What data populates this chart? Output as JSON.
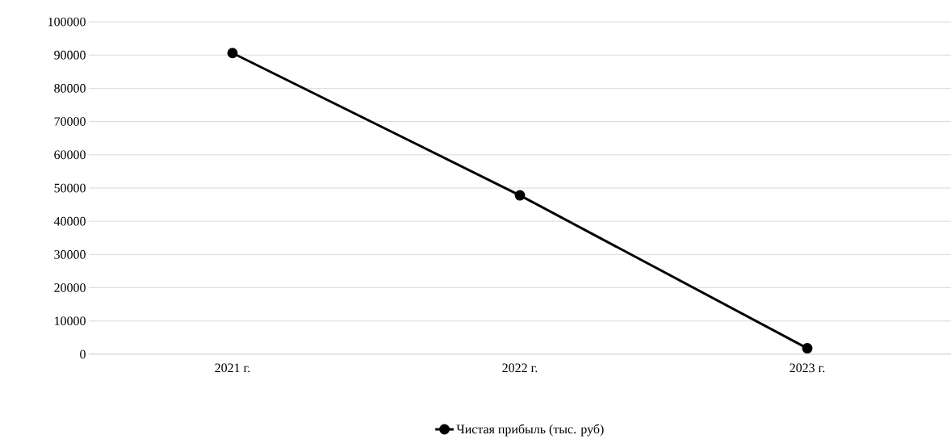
{
  "chart_data": {
    "type": "line",
    "categories": [
      "2021 г.",
      "2022 г.",
      "2023 г."
    ],
    "series": [
      {
        "name": "Чистая прибыль (тыс. руб)",
        "color": "#000000",
        "values": [
          90600,
          47800,
          1800
        ]
      }
    ],
    "ylim": [
      0,
      100000
    ],
    "yticks": [
      0,
      10000,
      20000,
      30000,
      40000,
      50000,
      60000,
      70000,
      80000,
      90000,
      100000
    ],
    "grid": "y",
    "legend": "bottom",
    "marker": "circle",
    "line_style": "solid"
  }
}
